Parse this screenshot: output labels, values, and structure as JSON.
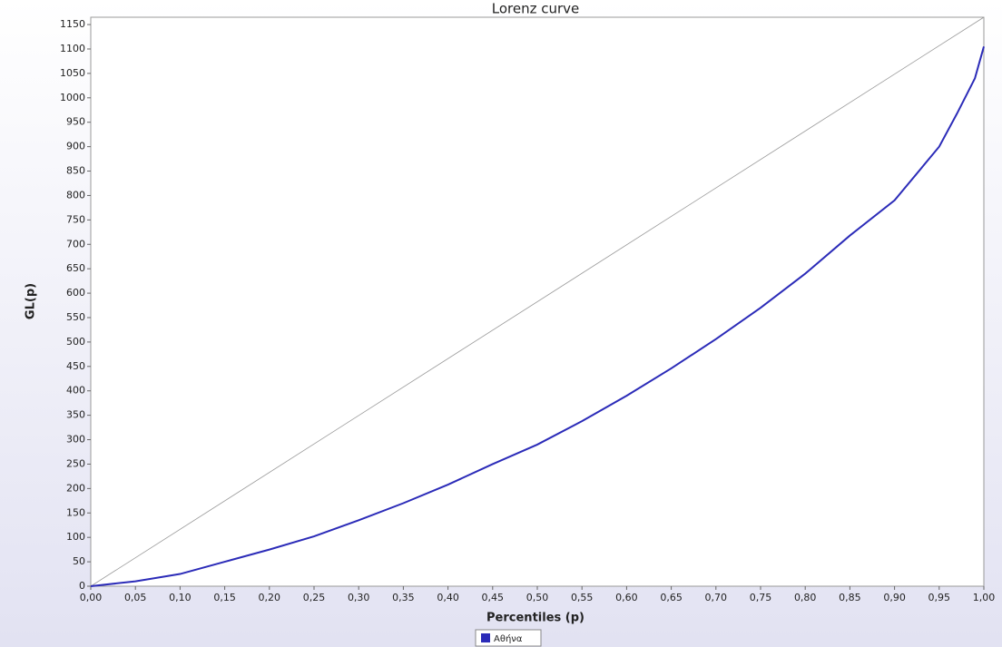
{
  "chart_data": {
    "type": "line",
    "title": "Lorenz curve",
    "xlabel": "Percentiles (p)",
    "ylabel": "GL(p)",
    "x": [
      0,
      0.05,
      0.1,
      0.15,
      0.2,
      0.25,
      0.3,
      0.35,
      0.4,
      0.45,
      0.5,
      0.55,
      0.6,
      0.65,
      0.7,
      0.75,
      0.8,
      0.85,
      0.9,
      0.95,
      0.97,
      0.99,
      1.0
    ],
    "series": [
      {
        "name": "Αθήνα",
        "color": "#2b2bb8",
        "values": [
          0,
          10,
          25,
          50,
          75,
          102,
          135,
          170,
          208,
          250,
          290,
          338,
          390,
          446,
          506,
          570,
          640,
          718,
          790,
          900,
          968,
          1040,
          1105
        ]
      }
    ],
    "reference_line": {
      "color": "#999999",
      "x": [
        0,
        1
      ],
      "values": [
        0,
        1165
      ]
    },
    "xlim": [
      0,
      1
    ],
    "ylim": [
      0,
      1165
    ],
    "xticks": [
      {
        "value": 0,
        "label": "0,00"
      },
      {
        "value": 0.05,
        "label": "0,05"
      },
      {
        "value": 0.1,
        "label": "0,10"
      },
      {
        "value": 0.15,
        "label": "0,15"
      },
      {
        "value": 0.2,
        "label": "0,20"
      },
      {
        "value": 0.25,
        "label": "0,25"
      },
      {
        "value": 0.3,
        "label": "0,30"
      },
      {
        "value": 0.35,
        "label": "0,35"
      },
      {
        "value": 0.4,
        "label": "0,40"
      },
      {
        "value": 0.45,
        "label": "0,45"
      },
      {
        "value": 0.5,
        "label": "0,50"
      },
      {
        "value": 0.55,
        "label": "0,55"
      },
      {
        "value": 0.6,
        "label": "0,60"
      },
      {
        "value": 0.65,
        "label": "0,65"
      },
      {
        "value": 0.7,
        "label": "0,70"
      },
      {
        "value": 0.75,
        "label": "0,75"
      },
      {
        "value": 0.8,
        "label": "0,80"
      },
      {
        "value": 0.85,
        "label": "0,85"
      },
      {
        "value": 0.9,
        "label": "0,90"
      },
      {
        "value": 0.95,
        "label": "0,95"
      },
      {
        "value": 1,
        "label": "1,00"
      }
    ],
    "yticks": [
      0,
      50,
      100,
      150,
      200,
      250,
      300,
      350,
      400,
      450,
      500,
      550,
      600,
      650,
      700,
      750,
      800,
      850,
      900,
      950,
      1000,
      1050,
      1100,
      1150
    ],
    "legend": "bottom"
  }
}
